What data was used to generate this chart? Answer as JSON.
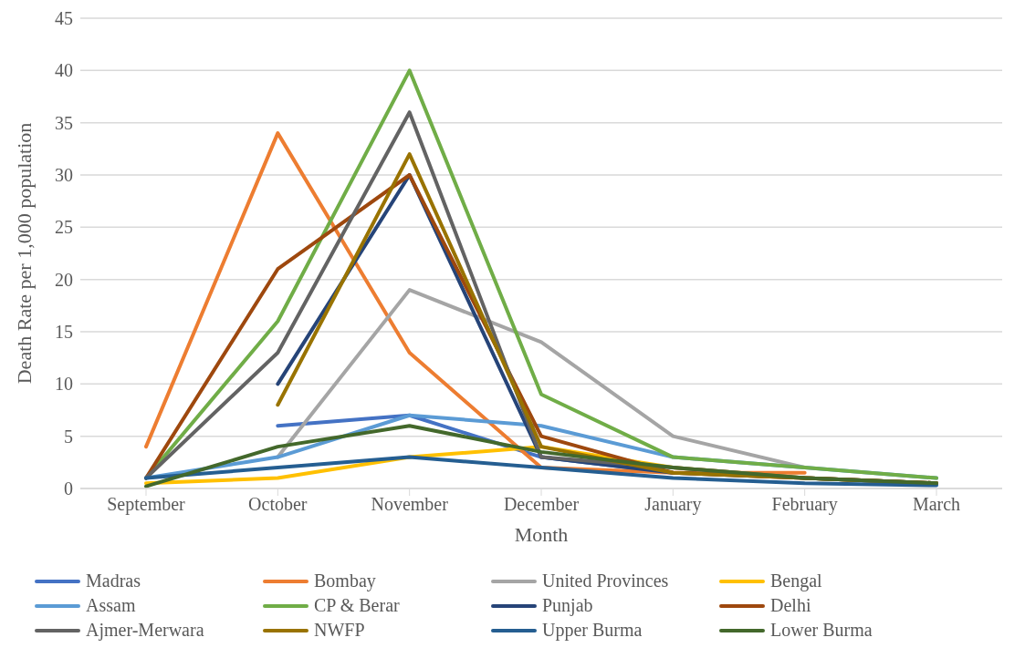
{
  "chart_data": {
    "type": "line",
    "xlabel": "Month",
    "ylabel": "Death Rate per 1,000 population",
    "categories": [
      "September",
      "October",
      "November",
      "December",
      "January",
      "February",
      "March"
    ],
    "ylim": [
      0,
      45
    ],
    "yticks": [
      0,
      5,
      10,
      15,
      20,
      25,
      30,
      35,
      40,
      45
    ],
    "grid": "y",
    "legend": "bottom",
    "marker": "none",
    "line_style": "solid",
    "series": [
      {
        "name": "Madras",
        "color": "#4472c4",
        "values": [
          null,
          6,
          7,
          3,
          1.5,
          null,
          null
        ]
      },
      {
        "name": "Bombay",
        "color": "#ed7d31",
        "values": [
          4,
          34,
          13,
          2,
          1.5,
          1.5,
          null
        ]
      },
      {
        "name": "United Provinces",
        "color": "#a5a5a5",
        "values": [
          null,
          3,
          19,
          14,
          5,
          2,
          null
        ]
      },
      {
        "name": "Bengal",
        "color": "#ffc000",
        "values": [
          0.5,
          1,
          3,
          4,
          2,
          1,
          0.5
        ]
      },
      {
        "name": "Assam",
        "color": "#5b9bd5",
        "values": [
          1,
          3,
          7,
          6,
          3,
          2,
          1
        ]
      },
      {
        "name": "CP & Berar",
        "color": "#70ad47",
        "values": [
          1,
          16,
          40,
          9,
          3,
          2,
          1
        ]
      },
      {
        "name": "Punjab",
        "color": "#264478",
        "values": [
          null,
          10,
          30,
          3,
          1.5,
          1,
          0.5
        ]
      },
      {
        "name": "Delhi",
        "color": "#9e480e",
        "values": [
          1,
          21,
          30,
          5,
          1.5,
          1,
          0.5
        ]
      },
      {
        "name": "Ajmer-Merwara",
        "color": "#636363",
        "values": [
          1,
          13,
          36,
          3,
          2,
          1,
          0.5
        ]
      },
      {
        "name": "NWFP",
        "color": "#997300",
        "values": [
          null,
          8,
          32,
          4,
          1.5,
          1,
          0.5
        ]
      },
      {
        "name": "Upper Burma",
        "color": "#255e91",
        "values": [
          1,
          2,
          3,
          2,
          1,
          0.5,
          0.3
        ]
      },
      {
        "name": "Lower Burma",
        "color": "#43682b",
        "values": [
          0.2,
          4,
          6,
          3.5,
          2,
          1,
          0.5
        ]
      }
    ]
  }
}
